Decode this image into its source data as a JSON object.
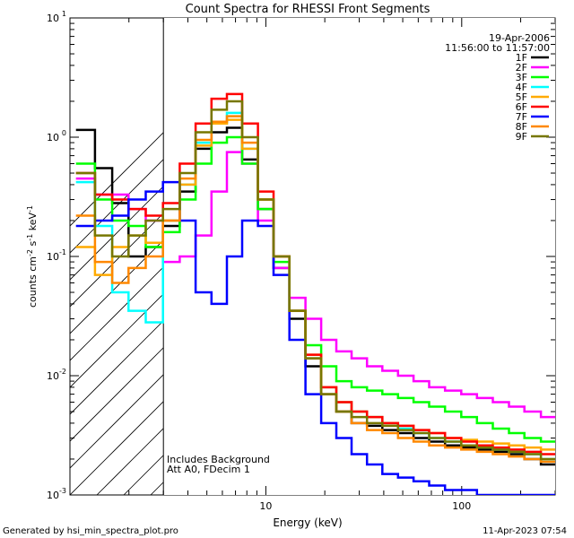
{
  "chart_data": {
    "type": "line",
    "title": "Count Spectra for RHESSI Front Segments",
    "xlabel": "Energy (keV)",
    "ylabel": "counts cm-2 s-1 keV-1",
    "xscale": "log",
    "yscale": "log",
    "xlim": [
      1.0,
      300
    ],
    "ylim": [
      0.001,
      10
    ],
    "x_ticks": [
      {
        "value": 10,
        "label": "10"
      },
      {
        "value": 100,
        "label": "100"
      }
    ],
    "y_ticks": [
      {
        "value": 10,
        "label": "10",
        "exp": "1"
      },
      {
        "value": 1,
        "label": "10",
        "exp": "0"
      },
      {
        "value": 0.1,
        "label": "10",
        "exp": "-1"
      },
      {
        "value": 0.01,
        "label": "10",
        "exp": "-2"
      },
      {
        "value": 0.001,
        "label": "10",
        "exp": "-3"
      }
    ],
    "date": "19-Apr-2006",
    "time_range": "11:56:00 to 11:57:00",
    "hatched_region": [
      1.0,
      3.0
    ],
    "annotations": [
      "Includes Background",
      "Att A0, FDecim 1"
    ],
    "x": [
      1.2,
      1.5,
      1.8,
      2.2,
      2.7,
      3.3,
      4.0,
      4.8,
      5.8,
      6.9,
      8.3,
      10,
      12,
      14.5,
      17.5,
      21,
      25,
      30,
      36,
      43,
      52,
      62,
      75,
      90,
      110,
      130,
      160,
      190,
      230,
      280
    ],
    "series": [
      {
        "name": "1F",
        "color": "#000000",
        "values": [
          1.15,
          0.55,
          0.28,
          0.1,
          0.12,
          0.18,
          0.35,
          0.8,
          1.1,
          1.2,
          0.65,
          0.25,
          0.08,
          0.03,
          0.012,
          0.007,
          0.005,
          0.004,
          0.0038,
          0.0035,
          0.0033,
          0.003,
          0.0028,
          0.0026,
          0.0025,
          0.0024,
          0.0023,
          0.0022,
          0.002,
          0.0018
        ]
      },
      {
        "name": "2F",
        "color": "#ff00ff",
        "values": [
          0.45,
          0.33,
          0.33,
          0.25,
          0.2,
          0.09,
          0.1,
          0.15,
          0.35,
          0.75,
          0.6,
          0.2,
          0.08,
          0.045,
          0.03,
          0.02,
          0.016,
          0.014,
          0.012,
          0.011,
          0.01,
          0.009,
          0.008,
          0.0075,
          0.007,
          0.0065,
          0.006,
          0.0055,
          0.005,
          0.0045
        ]
      },
      {
        "name": "3F",
        "color": "#00ff00",
        "values": [
          0.6,
          0.3,
          0.2,
          0.18,
          0.12,
          0.16,
          0.3,
          0.6,
          0.9,
          1.0,
          0.6,
          0.25,
          0.09,
          0.035,
          0.018,
          0.012,
          0.009,
          0.008,
          0.0075,
          0.007,
          0.0065,
          0.006,
          0.0055,
          0.005,
          0.0045,
          0.004,
          0.0036,
          0.0033,
          0.003,
          0.0028
        ]
      },
      {
        "name": "4F",
        "color": "#00ffff",
        "values": [
          0.42,
          0.18,
          0.05,
          0.035,
          0.028,
          0.2,
          0.4,
          0.9,
          1.3,
          1.6,
          0.8,
          0.3,
          0.1,
          0.035,
          0.014,
          0.008,
          0.006,
          0.005,
          0.0045,
          0.004,
          0.0036,
          0.0033,
          0.003,
          0.0028,
          0.0026,
          0.0025,
          0.0024,
          0.0023,
          0.0022,
          0.002
        ]
      },
      {
        "name": "5F",
        "color": "#ffaa00",
        "values": [
          0.12,
          0.07,
          0.12,
          0.15,
          0.13,
          0.2,
          0.4,
          0.85,
          1.3,
          1.4,
          0.8,
          0.3,
          0.1,
          0.035,
          0.015,
          0.008,
          0.006,
          0.005,
          0.0045,
          0.004,
          0.0038,
          0.0035,
          0.0033,
          0.003,
          0.0029,
          0.0028,
          0.0027,
          0.0026,
          0.0025,
          0.0024
        ]
      },
      {
        "name": "6F",
        "color": "#ff0000",
        "values": [
          0.5,
          0.33,
          0.3,
          0.25,
          0.22,
          0.28,
          0.6,
          1.3,
          2.1,
          2.3,
          1.3,
          0.35,
          0.1,
          0.035,
          0.015,
          0.008,
          0.006,
          0.005,
          0.0045,
          0.004,
          0.0038,
          0.0035,
          0.0033,
          0.003,
          0.0028,
          0.0026,
          0.0025,
          0.0024,
          0.0023,
          0.0022
        ]
      },
      {
        "name": "7F",
        "color": "#0000ff",
        "values": [
          0.18,
          0.2,
          0.22,
          0.3,
          0.35,
          0.42,
          0.2,
          0.05,
          0.04,
          0.1,
          0.2,
          0.18,
          0.07,
          0.02,
          0.007,
          0.004,
          0.003,
          0.0022,
          0.0018,
          0.0015,
          0.0014,
          0.0013,
          0.0012,
          0.0011,
          0.0011,
          0.001,
          0.001,
          0.001,
          0.001,
          0.001
        ]
      },
      {
        "name": "8F",
        "color": "#ff8800",
        "values": [
          0.22,
          0.09,
          0.06,
          0.08,
          0.1,
          0.2,
          0.45,
          0.95,
          1.35,
          1.5,
          0.9,
          0.3,
          0.1,
          0.035,
          0.014,
          0.007,
          0.005,
          0.004,
          0.0035,
          0.0033,
          0.003,
          0.0028,
          0.0026,
          0.0025,
          0.0024,
          0.0023,
          0.0022,
          0.0021,
          0.002,
          0.0019
        ]
      },
      {
        "name": "9F",
        "color": "#777700",
        "values": [
          0.5,
          0.15,
          0.1,
          0.15,
          0.2,
          0.25,
          0.5,
          1.1,
          1.7,
          2.0,
          1.0,
          0.3,
          0.1,
          0.035,
          0.014,
          0.007,
          0.005,
          0.0045,
          0.004,
          0.0038,
          0.0035,
          0.0033,
          0.003,
          0.0028,
          0.0026,
          0.0025,
          0.0024,
          0.0023,
          0.0022,
          0.002
        ]
      }
    ]
  },
  "footer": {
    "left": "Generated by hsi_min_spectra_plot.pro",
    "right": "11-Apr-2023 07:54"
  }
}
